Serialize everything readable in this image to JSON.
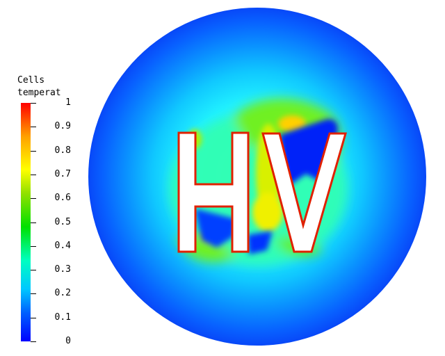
{
  "legend": {
    "title_lines": [
      "Cells",
      "temperat"
    ],
    "ticks": [
      "1",
      "0.9",
      "0.8",
      "0.7",
      "0.6",
      "0.5",
      "0.4",
      "0.3",
      "0.2",
      "0.1",
      "0"
    ],
    "range": [
      0,
      1
    ],
    "colormap": [
      "#0000ff",
      "#00c8ff",
      "#00ff80",
      "#00e000",
      "#ffff00",
      "#ff8000",
      "#ff0000"
    ]
  },
  "overlay_text": "HV"
}
